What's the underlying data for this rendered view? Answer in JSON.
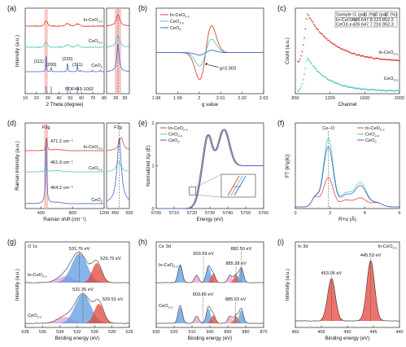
{
  "colors": {
    "red": "#e2463a",
    "cyan": "#55c8c2",
    "blue": "#4a64c8",
    "pink": "#f3b7b2",
    "grey": "#888888"
  },
  "chart_data": [
    {
      "id": "a",
      "type": "line",
      "letter": "(a)",
      "xlabel": "2 Theta (degree)",
      "ylabel": "Intensity (a.u.)",
      "xlim": [
        10,
        80
      ],
      "xticks": [
        10,
        20,
        30,
        40,
        50,
        60,
        70,
        80
      ],
      "inset_xlim": [
        26,
        31
      ],
      "inset_xticks": [
        28,
        30
      ],
      "series": [
        {
          "name": "In-CeO2-x",
          "label": "In-CeO",
          "sub": "2-x",
          "color": "red"
        },
        {
          "name": "CeO2-x",
          "label": "CeO",
          "sub": "2-x",
          "color": "cyan"
        },
        {
          "name": "CeO2",
          "label": "CeO",
          "sub": "2",
          "color": "blue"
        }
      ],
      "peaks": [
        {
          "hkl": "(111)",
          "x": 28.5
        },
        {
          "hkl": "(200)",
          "x": 33.1
        },
        {
          "hkl": "(220)",
          "x": 47.5
        },
        {
          "hkl": "(311)",
          "x": 56.3
        }
      ],
      "reference": "PDF#43-1002",
      "highlight": [
        27,
        30
      ]
    },
    {
      "id": "b",
      "type": "line",
      "letter": "(b)",
      "xlabel": "g value",
      "ylabel": "",
      "xlim": [
        1.98,
        2.03
      ],
      "xticks": [
        1.98,
        1.99,
        2.0,
        2.01,
        2.02,
        2.03
      ],
      "series": [
        {
          "name": "In-CeO2-x",
          "label": "In-CeO",
          "sub": "2-x",
          "color": "red"
        },
        {
          "name": "CeO2-x",
          "label": "CeO",
          "sub": "2-x",
          "color": "cyan"
        },
        {
          "name": "CeO2",
          "label": "CeO",
          "sub": "2",
          "color": "blue"
        }
      ],
      "annotation": "g=2.003"
    },
    {
      "id": "c",
      "type": "scatter",
      "letter": "(c)",
      "xlabel": "Channel",
      "ylabel": "Count (a.u.)",
      "xlim": [
        800,
        2000
      ],
      "xticks": [
        800,
        1200,
        1600,
        2000
      ],
      "series": [
        {
          "name": "In-CeO2-x",
          "label": "In-CeO",
          "sub": "2-x",
          "color": "red"
        },
        {
          "name": "CeO2-x",
          "label": "CeO",
          "sub": "2-x",
          "color": "cyan"
        }
      ],
      "table": {
        "headers": [
          "Sample",
          "τ1 (ps)",
          "I1 (%)",
          "τ2 (ps)",
          "I2 (%)"
        ],
        "rows": [
          [
            "In-CeO2-x",
            "428.6",
            "47.8",
            "223.8",
            "52.2"
          ],
          [
            "CeO2-x",
            "426.6",
            "47.7",
            "216.9",
            "52.3"
          ]
        ]
      }
    },
    {
      "id": "d",
      "type": "line",
      "letter": "(d)",
      "xlabel": "Raman shift (cm⁻¹)",
      "ylabel": "Raman intensity (a.u.)",
      "xlim": [
        200,
        1200
      ],
      "xticks": [
        400,
        800,
        1200
      ],
      "inset_xlim": [
        420,
        500
      ],
      "inset_xticks": [
        450,
        500
      ],
      "series": [
        {
          "name": "In-CeO2-x",
          "label": "In-CeO",
          "sub": "2-x",
          "color": "red",
          "peak": "471.2 cm⁻¹"
        },
        {
          "name": "CeO2-x",
          "label": "CeO",
          "sub": "2-x",
          "color": "cyan",
          "peak": "461.9 cm⁻¹"
        },
        {
          "name": "CeO2",
          "label": "CeO",
          "sub": "2",
          "color": "blue",
          "peak": "464.2 cm⁻¹"
        }
      ],
      "mode": "F2g",
      "highlight": [
        440,
        490
      ]
    },
    {
      "id": "e",
      "type": "line",
      "letter": "(e)",
      "xlabel": "Energy (eV)",
      "ylabel": "Normalized Xμ (E)",
      "xlim": [
        5700,
        5760
      ],
      "xticks": [
        5700,
        5710,
        5720,
        5730,
        5740,
        5750,
        5760
      ],
      "ylim": [
        0,
        2
      ],
      "yticks": [
        0,
        1,
        2
      ],
      "series": [
        {
          "name": "In-CeO2-x",
          "label": "In-CeO",
          "sub": "2-x",
          "color": "red"
        },
        {
          "name": "CeO2-x",
          "label": "CeO",
          "sub": "2-x",
          "color": "cyan"
        },
        {
          "name": "CeO2",
          "label": "CeO",
          "sub": "2",
          "color": "blue"
        }
      ]
    },
    {
      "id": "f",
      "type": "line",
      "letter": "(f)",
      "xlabel": "R+α (Å)",
      "ylabel": "FT (k²χ(k))",
      "xlim": [
        0,
        6
      ],
      "xticks": [
        0,
        2,
        4,
        6
      ],
      "series": [
        {
          "name": "In-CeO2-x",
          "label": "In-CeO",
          "sub": "2-x",
          "color": "red"
        },
        {
          "name": "CeO2-x",
          "label": "CeO",
          "sub": "2-x",
          "color": "cyan"
        },
        {
          "name": "CeO2",
          "label": "CeO",
          "sub": "2",
          "color": "blue"
        }
      ],
      "annotation": "Ce–O"
    },
    {
      "id": "g",
      "type": "line",
      "letter": "(g)",
      "core": "O 1s",
      "xlabel": "Binding energy (eV)",
      "ylabel": "Intensity (a.u.)",
      "xlim": [
        538,
        526
      ],
      "xticks": [
        538,
        536,
        534,
        532,
        530,
        528,
        526
      ],
      "series": [
        {
          "name": "In-CeO2-x",
          "label": "In-CeO",
          "sub": "2-x",
          "peaks": [
            "531.76 eV",
            "529.75 eV"
          ]
        },
        {
          "name": "CeO2-x",
          "label": "CeO",
          "sub": "2-x",
          "peaks": [
            "531.35 eV",
            "529.51 eV"
          ]
        }
      ]
    },
    {
      "id": "h",
      "type": "line",
      "letter": "(h)",
      "core": "Ce 3d",
      "xlabel": "Binding energy (eV)",
      "ylabel": "",
      "xlim": [
        930,
        870
      ],
      "xticks": [
        930,
        920,
        910,
        900,
        890,
        880,
        870
      ],
      "series": [
        {
          "name": "In-CeO2-x",
          "label": "In-CeO",
          "sub": "2-x",
          "peaks": [
            "903.59 eV",
            "885.38 eV",
            "882.50 eV"
          ]
        },
        {
          "name": "CeO2-x",
          "label": "CeO",
          "sub": "2-x",
          "peaks": [
            "903.89 eV",
            "885.63 eV"
          ]
        }
      ]
    },
    {
      "id": "i",
      "type": "line",
      "letter": "(i)",
      "core": "In 3d",
      "xlabel": "Binding energy (eV)",
      "ylabel": "Intensity (a.u.)",
      "xlim": [
        460,
        440
      ],
      "xticks": [
        460,
        455,
        450,
        445,
        440
      ],
      "series": [
        {
          "name": "In-CeO2-x",
          "label": "In-CeO",
          "sub": "2-x",
          "peaks": [
            "453.06 eV",
            "445.53 eV"
          ]
        }
      ]
    }
  ]
}
